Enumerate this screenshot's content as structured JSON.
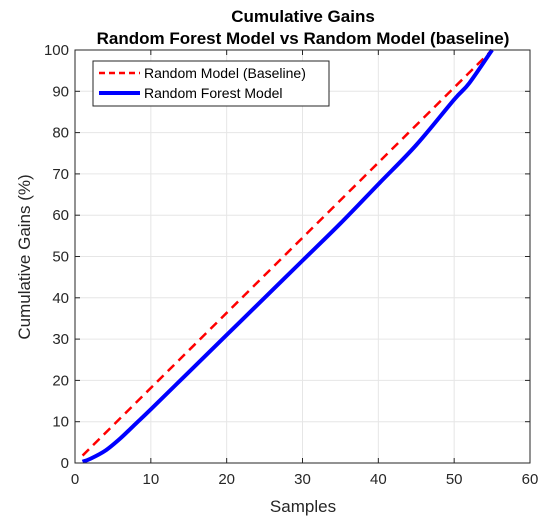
{
  "chart_data": {
    "type": "line",
    "title": "Cumulative Gains",
    "subtitle": "Random Forest Model vs Random Model (baseline)",
    "xlabel": "Samples",
    "ylabel": "Cumulative Gains (%)",
    "xlim": [
      0,
      60
    ],
    "ylim": [
      0,
      100
    ],
    "xticks": [
      0,
      10,
      20,
      30,
      40,
      50,
      60
    ],
    "yticks": [
      0,
      10,
      20,
      30,
      40,
      50,
      60,
      70,
      80,
      90,
      100
    ],
    "grid": true,
    "legend_position": "top-left",
    "series": [
      {
        "name": "Random Model (Baseline)",
        "color": "#ff0000",
        "style": "dashed",
        "x": [
          1,
          55
        ],
        "y": [
          1.8,
          100
        ]
      },
      {
        "name": "Random Forest Model",
        "color": "#0000ff",
        "style": "solid",
        "x": [
          1,
          2,
          4,
          6,
          8,
          10,
          15,
          20,
          25,
          30,
          35,
          40,
          45,
          50,
          52,
          55
        ],
        "y": [
          0.3,
          1,
          3,
          6,
          9.5,
          13,
          22,
          31,
          40,
          49,
          58,
          67.5,
          77,
          88,
          92,
          100
        ]
      }
    ]
  }
}
